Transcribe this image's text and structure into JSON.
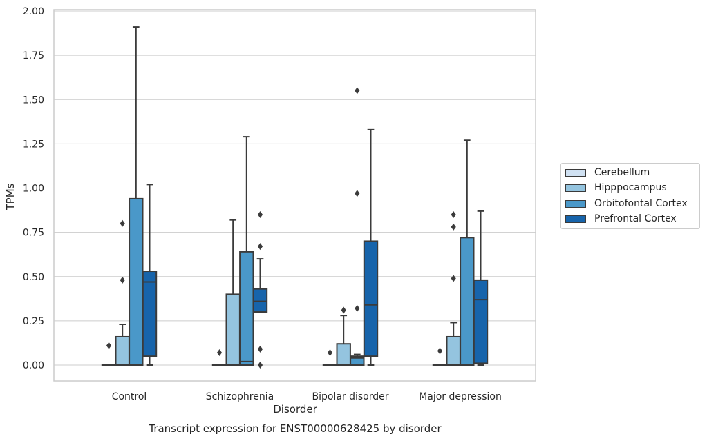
{
  "chart_data": {
    "type": "box",
    "title": "Transcript expression for ENST00000628425 by disorder",
    "xlabel": "Disorder",
    "ylabel": "TPMs",
    "ylim": [
      -0.09,
      2.01
    ],
    "yticks": [
      "0.00",
      "0.25",
      "0.50",
      "0.75",
      "1.00",
      "1.25",
      "1.50",
      "1.75",
      "2.00"
    ],
    "ytick_values": [
      0,
      0.25,
      0.5,
      0.75,
      1.0,
      1.25,
      1.5,
      1.75,
      2.0
    ],
    "categories": [
      "Control",
      "Schizophrenia",
      "Bipolar disorder",
      "Major depression"
    ],
    "grid": "horizontal",
    "legend_position": "right",
    "series": [
      {
        "name": "Cerebellum",
        "color": "#d0e1f2",
        "boxes": [
          {
            "q1": 0,
            "median": 0,
            "q3": 0,
            "whisker_low": 0,
            "whisker_high": 0,
            "outliers": [
              0.11
            ]
          },
          {
            "q1": 0,
            "median": 0,
            "q3": 0,
            "whisker_low": 0,
            "whisker_high": 0,
            "outliers": [
              0.07
            ]
          },
          {
            "q1": 0,
            "median": 0,
            "q3": 0,
            "whisker_low": 0,
            "whisker_high": 0,
            "outliers": [
              0.07
            ]
          },
          {
            "q1": 0,
            "median": 0,
            "q3": 0,
            "whisker_low": 0,
            "whisker_high": 0,
            "outliers": [
              0.08
            ]
          }
        ]
      },
      {
        "name": "Hipppocampus",
        "color": "#94c4df",
        "boxes": [
          {
            "q1": 0,
            "median": 0,
            "q3": 0.16,
            "whisker_low": 0,
            "whisker_high": 0.23,
            "outliers": [
              0.48,
              0.8
            ]
          },
          {
            "q1": 0,
            "median": 0,
            "q3": 0.4,
            "whisker_low": 0,
            "whisker_high": 0.82,
            "outliers": []
          },
          {
            "q1": 0,
            "median": 0,
            "q3": 0.12,
            "whisker_low": 0,
            "whisker_high": 0.28,
            "outliers": [
              0.31
            ]
          },
          {
            "q1": 0,
            "median": 0,
            "q3": 0.16,
            "whisker_low": 0,
            "whisker_high": 0.24,
            "outliers": [
              0.49,
              0.78,
              0.85
            ]
          }
        ]
      },
      {
        "name": "Orbitofontal Cortex",
        "color": "#4a98c9",
        "boxes": [
          {
            "q1": 0,
            "median": 0,
            "q3": 0.94,
            "whisker_low": 0,
            "whisker_high": 1.91,
            "outliers": []
          },
          {
            "q1": 0,
            "median": 0.02,
            "q3": 0.64,
            "whisker_low": 0,
            "whisker_high": 1.29,
            "outliers": []
          },
          {
            "q1": 0,
            "median": 0.04,
            "q3": 0.05,
            "whisker_low": 0,
            "whisker_high": 0.06,
            "outliers": [
              0.32,
              0.97,
              1.55
            ]
          },
          {
            "q1": 0,
            "median": 0,
            "q3": 0.72,
            "whisker_low": 0,
            "whisker_high": 1.27,
            "outliers": []
          }
        ]
      },
      {
        "name": "Prefrontal Cortex",
        "color": "#1764ab",
        "boxes": [
          {
            "q1": 0.05,
            "median": 0.47,
            "q3": 0.53,
            "whisker_low": 0,
            "whisker_high": 1.02,
            "outliers": []
          },
          {
            "q1": 0.3,
            "median": 0.36,
            "q3": 0.43,
            "whisker_low": 0.3,
            "whisker_high": 0.6,
            "outliers": [
              0,
              0.09,
              0.67,
              0.85
            ]
          },
          {
            "q1": 0.05,
            "median": 0.34,
            "q3": 0.7,
            "whisker_low": 0,
            "whisker_high": 1.33,
            "outliers": []
          },
          {
            "q1": 0.01,
            "median": 0.37,
            "q3": 0.48,
            "whisker_low": 0,
            "whisker_high": 0.87,
            "outliers": []
          }
        ]
      }
    ]
  }
}
